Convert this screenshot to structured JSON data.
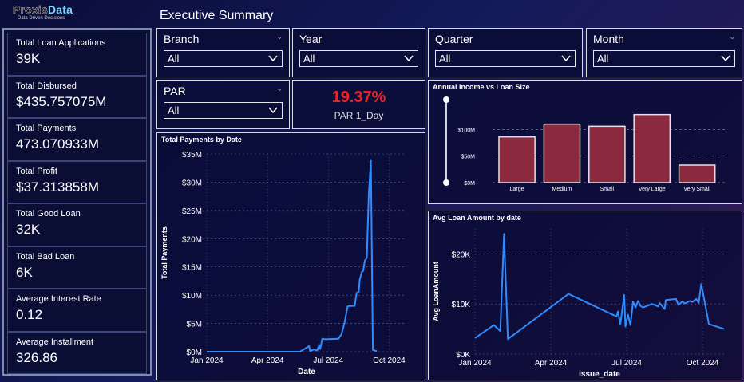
{
  "logo": {
    "brand_part1": "Proxis",
    "brand_part2": "Data",
    "tagline": "Data Driven Decisions"
  },
  "page_title": "Executive Summary",
  "kpis": [
    {
      "label": "Total Loan Applications",
      "value": "39K"
    },
    {
      "label": "Total Disbursed",
      "value": "$435.757075M"
    },
    {
      "label": "Total Payments",
      "value": "473.070933M"
    },
    {
      "label": "Total Profit",
      "value": "$37.313858M"
    },
    {
      "label": "Total Good Loan",
      "value": "32K"
    },
    {
      "label": "Total Bad Loan",
      "value": "6K"
    },
    {
      "label": "Average Interest Rate",
      "value": "0.12"
    },
    {
      "label": "Average Installment",
      "value": "326.86"
    }
  ],
  "slicers": {
    "branch": {
      "title": "Branch",
      "value": "All"
    },
    "year": {
      "title": "Year",
      "value": "All"
    },
    "quarter": {
      "title": "Quarter",
      "value": "All"
    },
    "month": {
      "title": "Month",
      "value": "All"
    },
    "par": {
      "title": "PAR",
      "value": "All"
    }
  },
  "par_card": {
    "value": "19.37%",
    "label": "PAR 1_Day"
  },
  "chart_data": [
    {
      "id": "total-payments",
      "type": "line",
      "title": "Total Payments by Date",
      "xlabel": "Date",
      "ylabel": "Total Payments",
      "x_ticks": [
        "Jan 2024",
        "Apr 2024",
        "Jul 2024",
        "Oct 2024"
      ],
      "y_ticks": [
        "$0M",
        "$5M",
        "$10M",
        "$15M",
        "$20M",
        "$25M",
        "$30M",
        "$35M"
      ],
      "ylim": [
        0,
        35
      ],
      "series": [
        {
          "color": "#2f8cff",
          "points": [
            [
              0,
              0
            ],
            [
              2.4,
              0
            ],
            [
              4.6,
              0
            ],
            [
              5.05,
              1.0
            ],
            [
              5.1,
              0.1
            ],
            [
              5.3,
              0.4
            ],
            [
              5.45,
              0.2
            ],
            [
              5.55,
              1.2
            ],
            [
              5.6,
              0.5
            ],
            [
              5.7,
              2.3
            ],
            [
              5.85,
              2.2
            ],
            [
              6.5,
              2.3
            ],
            [
              6.65,
              3.1
            ],
            [
              6.8,
              5.1
            ],
            [
              6.95,
              8.0
            ],
            [
              7.05,
              8.1
            ],
            [
              7.3,
              8.1
            ],
            [
              7.4,
              10.4
            ],
            [
              7.5,
              10.6
            ],
            [
              7.55,
              12.7
            ],
            [
              7.65,
              14.1
            ],
            [
              7.72,
              14.3
            ],
            [
              7.8,
              16.1
            ],
            [
              7.9,
              16.6
            ],
            [
              8.0,
              28.0
            ],
            [
              8.1,
              33.8
            ],
            [
              8.2,
              0.3
            ],
            [
              8.4,
              0.1
            ]
          ]
        }
      ]
    },
    {
      "id": "income-vs-loan",
      "type": "bar",
      "title": "Annual Income vs Loan Size",
      "categories": [
        "Large",
        "Medium",
        "Small",
        "Very Large",
        "Very Small"
      ],
      "values": [
        86,
        110,
        106,
        128,
        33
      ],
      "y_ticks": [
        "$0M",
        "$50M",
        "$100M"
      ],
      "ylim": [
        0,
        150
      ],
      "bar_color": "#8b2a3e"
    },
    {
      "id": "avg-loan",
      "type": "line",
      "title": "Avg Loan Amount by date",
      "xlabel": "issue_date",
      "ylabel": "Avg LoanAmount",
      "x_ticks": [
        "Jan 2024",
        "Apr 2024",
        "Jul 2024",
        "Oct 2024"
      ],
      "y_ticks": [
        "$0K",
        "$10K",
        "$20K"
      ],
      "ylim": [
        0,
        25
      ],
      "series": [
        {
          "color": "#2f8cff",
          "points": [
            [
              0,
              3.2
            ],
            [
              0.75,
              5.8
            ],
            [
              1.0,
              4.6
            ],
            [
              1.15,
              24.0
            ],
            [
              1.3,
              3.0
            ],
            [
              3.7,
              12.0
            ],
            [
              5.6,
              7.5
            ],
            [
              5.65,
              8.5
            ],
            [
              5.75,
              6.0
            ],
            [
              5.9,
              11.8
            ],
            [
              5.95,
              5.5
            ],
            [
              6.05,
              7.9
            ],
            [
              6.15,
              5.8
            ],
            [
              6.25,
              10.5
            ],
            [
              6.35,
              9.3
            ],
            [
              6.45,
              10.6
            ],
            [
              6.55,
              9.6
            ],
            [
              6.65,
              9.3
            ],
            [
              7.0,
              10.0
            ],
            [
              7.25,
              9.5
            ],
            [
              7.3,
              10.2
            ],
            [
              7.5,
              9.0
            ],
            [
              7.55,
              10.8
            ],
            [
              7.95,
              11.0
            ],
            [
              8.05,
              9.8
            ],
            [
              8.2,
              10.5
            ],
            [
              8.3,
              10.1
            ],
            [
              8.5,
              10.6
            ],
            [
              8.6,
              10.4
            ],
            [
              8.75,
              11.0
            ],
            [
              8.85,
              10.2
            ],
            [
              8.95,
              14.0
            ],
            [
              9.25,
              6.0
            ],
            [
              9.85,
              5.0
            ]
          ]
        }
      ]
    }
  ]
}
